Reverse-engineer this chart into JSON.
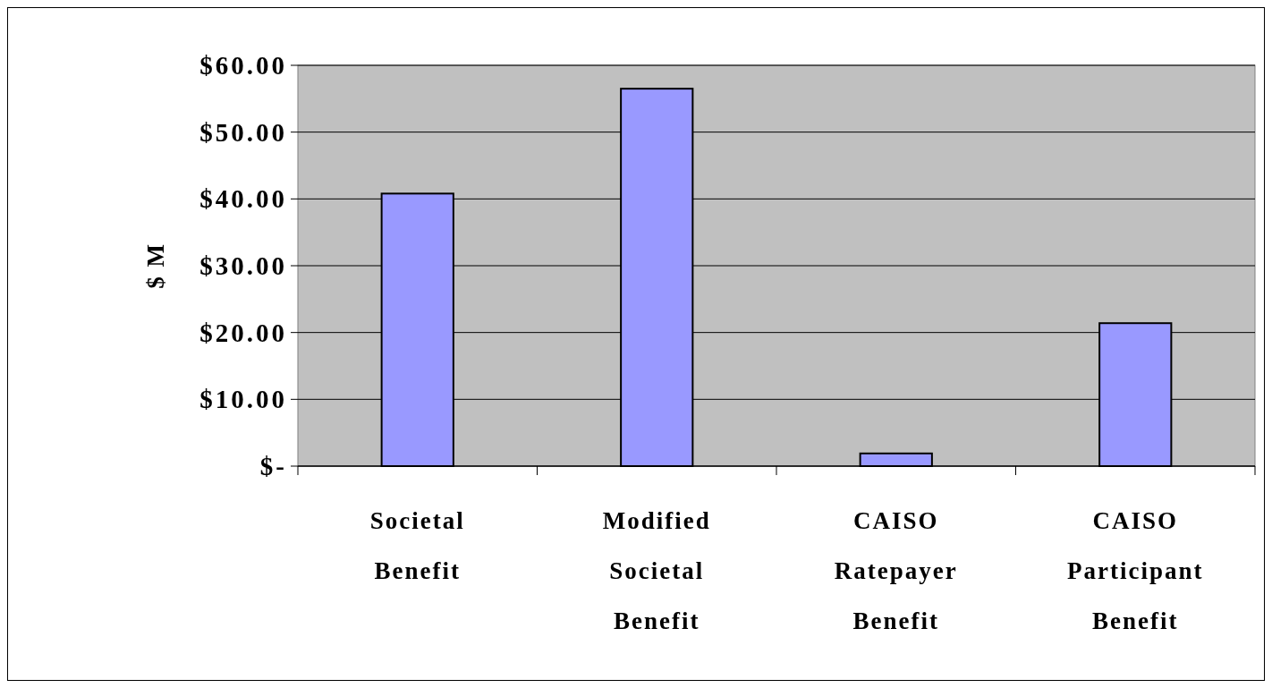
{
  "chart_data": {
    "type": "bar",
    "ylabel": "$ M",
    "categories": [
      "Societal Benefit",
      "Modified Societal Benefit",
      "CAISO Ratepayer Benefit",
      "CAISO Participant Benefit"
    ],
    "values": [
      40.8,
      56.5,
      1.9,
      21.4
    ],
    "color": "#9999ff",
    "ylim": [
      0,
      60
    ],
    "yticks": [
      {
        "value": 0,
        "label": "$-"
      },
      {
        "value": 10,
        "label": "$10.00"
      },
      {
        "value": 20,
        "label": "$20.00"
      },
      {
        "value": 30,
        "label": "$30.00"
      },
      {
        "value": 40,
        "label": "$40.00"
      },
      {
        "value": 50,
        "label": "$50.00"
      },
      {
        "value": 60,
        "label": "$60.00"
      }
    ],
    "grid": "y"
  }
}
